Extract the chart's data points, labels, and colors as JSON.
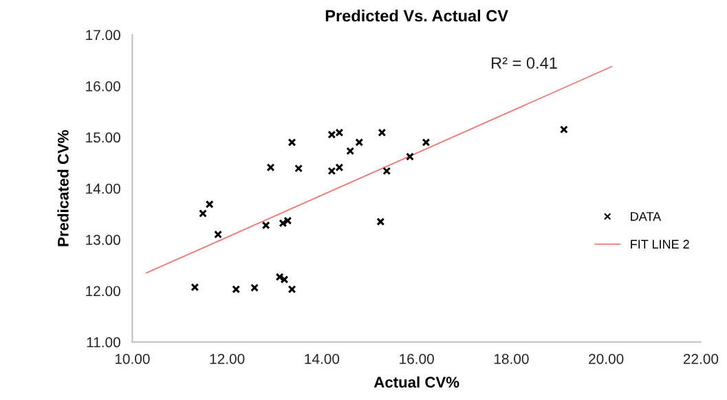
{
  "chart_data": {
    "type": "scatter",
    "title": "Predicted Vs. Actual CV",
    "xlabel": "Actual CV%",
    "ylabel": "Predicated CV%",
    "annotations": [
      "R² = 0.41"
    ],
    "xlim": [
      10,
      22
    ],
    "xticks": [
      {
        "value": 10,
        "label": "10.00"
      },
      {
        "value": 12,
        "label": "12.00"
      },
      {
        "value": 14,
        "label": "14.00"
      },
      {
        "value": 16,
        "label": "16.00"
      },
      {
        "value": 18,
        "label": "18.00"
      },
      {
        "value": 20,
        "label": "20.00"
      },
      {
        "value": 22,
        "label": "22.00"
      }
    ],
    "ylim": [
      11,
      17
    ],
    "yticks": [
      {
        "value": 11,
        "label": "11.00"
      },
      {
        "value": 12,
        "label": "12.00"
      },
      {
        "value": 13,
        "label": "13.00"
      },
      {
        "value": 14,
        "label": "14.00"
      },
      {
        "value": 15,
        "label": "15.00"
      },
      {
        "value": 16,
        "label": "16.00"
      },
      {
        "value": 17,
        "label": "17.00"
      }
    ],
    "grid": false,
    "legend": "right",
    "series": [
      {
        "name": "DATA",
        "marker": "cross",
        "color": "#000000",
        "x": [
          11.49,
          11.63,
          11.81,
          11.32,
          12.19,
          12.58,
          13.11,
          13.21,
          13.37,
          12.82,
          13.18,
          13.28,
          12.92,
          13.37,
          13.51,
          14.21,
          14.37,
          14.79,
          14.6,
          14.21,
          14.37,
          15.27,
          15.37,
          15.24,
          15.86,
          16.2,
          19.11
        ],
        "values": [
          13.51,
          13.69,
          13.1,
          12.07,
          12.03,
          12.06,
          12.27,
          12.22,
          12.03,
          13.28,
          13.32,
          13.37,
          14.41,
          14.9,
          14.39,
          15.05,
          15.09,
          14.9,
          14.73,
          14.34,
          14.41,
          15.09,
          14.34,
          13.35,
          14.62,
          14.9,
          15.15
        ]
      },
      {
        "name": "FIT LINE 2",
        "type": "line",
        "color": "#f8736f",
        "x": [
          10.3,
          20.12
        ],
        "values": [
          12.35,
          16.38
        ]
      }
    ]
  }
}
